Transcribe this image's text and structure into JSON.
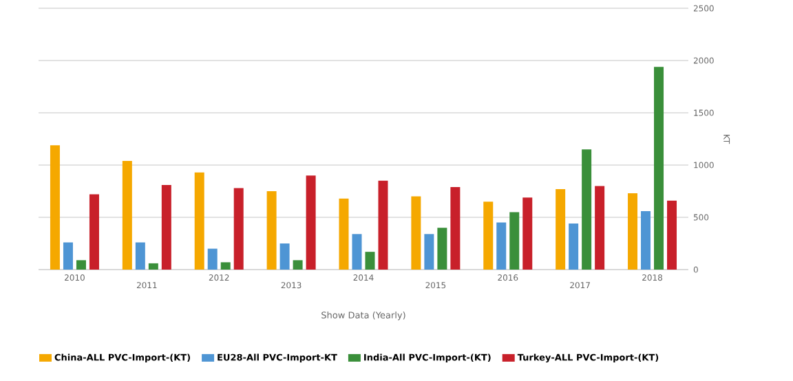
{
  "chart_data": {
    "type": "bar",
    "xlabel": "Show Data (Yearly)",
    "y2label": "KT",
    "categories": [
      "2010",
      "2011",
      "2012",
      "2013",
      "2014",
      "2015",
      "2016",
      "2017",
      "2018"
    ],
    "series": [
      {
        "name": "China-ALL PVC-Import-(KT)",
        "color": "#f5a800",
        "axis": "y2",
        "values": [
          1190,
          1040,
          930,
          750,
          680,
          700,
          650,
          770,
          730
        ]
      },
      {
        "name": "EU28-All PVC-Import-KT",
        "color": "#4e95d4",
        "axis": "y2",
        "values": [
          260,
          260,
          200,
          250,
          340,
          340,
          450,
          440,
          560
        ]
      },
      {
        "name": "India-All PVC-Import-(KT)",
        "color": "#3a8f3a",
        "axis": "y2",
        "values": [
          90,
          60,
          70,
          90,
          170,
          400,
          550,
          1150,
          1940
        ]
      },
      {
        "name": "Turkey-ALL PVC-Import-(KT)",
        "color": "#c8202a",
        "axis": "y2",
        "values": [
          720,
          810,
          780,
          900,
          850,
          790,
          690,
          800,
          660
        ]
      }
    ],
    "y2lim": [
      0,
      2500
    ],
    "y2ticks": [
      0,
      500,
      1000,
      1500,
      2000,
      2500
    ],
    "grid": "y",
    "legend": "bottom"
  }
}
